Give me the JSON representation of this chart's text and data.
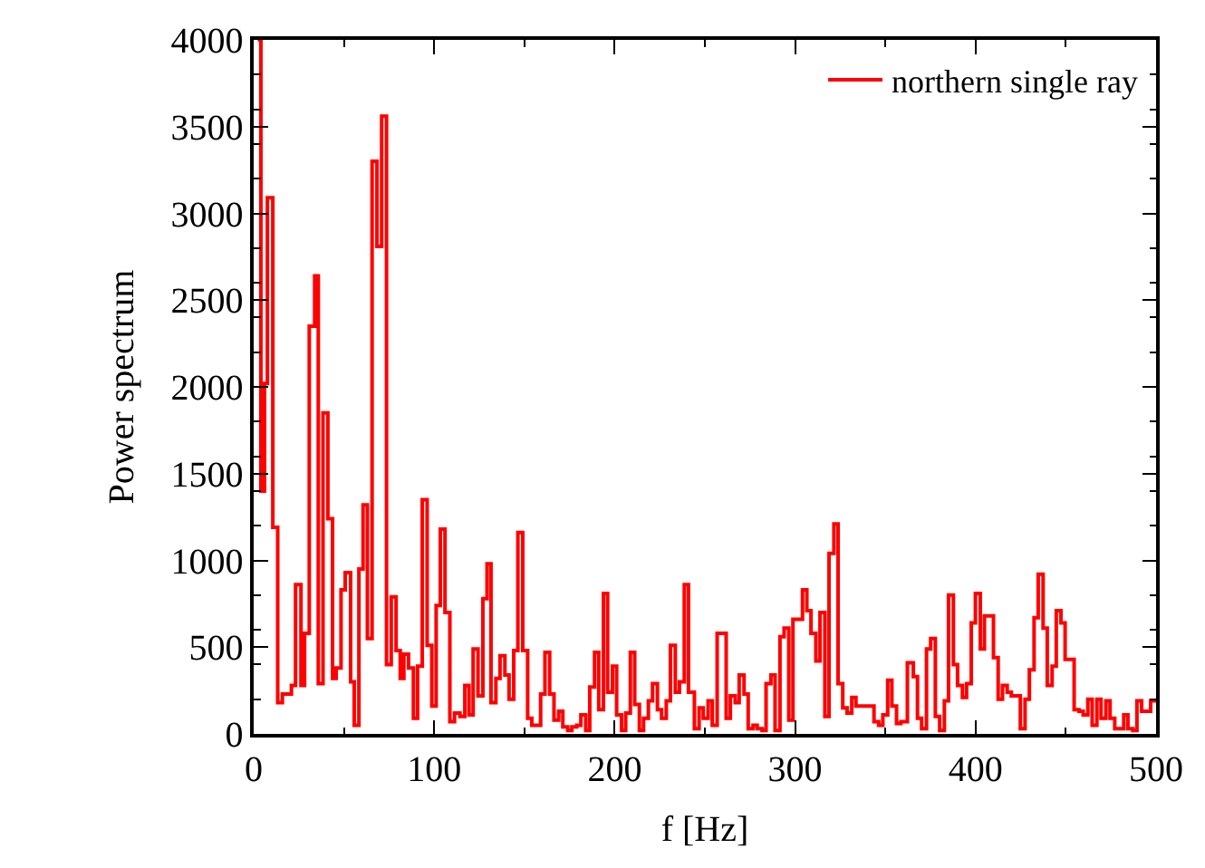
{
  "chart_data": {
    "type": "step",
    "xlabel": "f [Hz]",
    "ylabel": "Power spectrum",
    "xlim": [
      0,
      500
    ],
    "ylim": [
      0,
      4000
    ],
    "xticks": [
      0,
      100,
      200,
      300,
      400,
      500
    ],
    "yticks": [
      0,
      500,
      1000,
      1500,
      2000,
      2500,
      3000,
      3500,
      4000
    ],
    "legend": "top right",
    "marker": "none",
    "line_style": "solid",
    "series": [
      {
        "name": "northern single ray",
        "color": "#ff0000",
        "x": [
          2.3,
          4.0,
          6.0,
          7.6,
          10.6,
          13.3,
          15.9,
          20.9,
          23.2,
          26.2,
          28.2,
          30.8,
          33.8,
          35.8,
          38.4,
          41.1,
          43.7,
          45.7,
          48.4,
          50.7,
          53.7,
          55.7,
          58.3,
          60.6,
          63.0,
          65.6,
          68.3,
          70.9,
          73.6,
          76.2,
          78.9,
          81.2,
          83.2,
          85.8,
          88.5,
          90.8,
          93.4,
          96.1,
          98.7,
          101.1,
          103.4,
          106.0,
          108.7,
          111.3,
          114.3,
          117.0,
          119.3,
          121.6,
          124.3,
          127.0,
          129.3,
          131.5,
          134.2,
          136.5,
          139.2,
          141.5,
          144.1,
          146.4,
          149.1,
          151.8,
          154.1,
          159.0,
          161.4,
          164.0,
          166.4,
          169.0,
          171.3,
          174.0,
          176.3,
          179.0,
          181.3,
          184.0,
          186.2,
          188.9,
          191.2,
          193.8,
          196.1,
          198.8,
          201.1,
          203.8,
          206.1,
          208.7,
          211.1,
          213.7,
          216.0,
          218.7,
          221.0,
          223.7,
          226.0,
          228.6,
          230.9,
          233.6,
          235.9,
          238.6,
          240.9,
          244.2,
          246.8,
          249.1,
          251.8,
          254.1,
          256.8,
          261.8,
          264.1,
          266.8,
          269.0,
          271.7,
          274.0,
          276.7,
          279.0,
          281.7,
          283.9,
          286.6,
          288.9,
          291.6,
          293.9,
          296.5,
          298.8,
          304.1,
          306.5,
          308.8,
          311.5,
          313.8,
          316.5,
          318.8,
          321.5,
          323.8,
          326.4,
          328.8,
          331.4,
          333.7,
          343.7,
          346.3,
          348.6,
          351.3,
          353.6,
          356.2,
          358.6,
          362.2,
          365.5,
          367.8,
          370.1,
          372.8,
          375.1,
          377.7,
          380.1,
          382.7,
          385.0,
          387.7,
          390.0,
          392.7,
          395.0,
          397.6,
          399.9,
          402.6,
          404.9,
          409.9,
          412.5,
          414.9,
          417.5,
          419.8,
          424.8,
          427.4,
          429.8,
          432.4,
          434.7,
          437.4,
          439.7,
          442.4,
          444.7,
          447.3,
          449.6,
          454.6,
          457.3,
          459.6,
          462.2,
          464.6,
          467.2,
          469.5,
          472.2,
          474.5,
          477.1,
          482.1,
          484.4,
          487.1,
          489.4,
          492.0,
          494.4,
          497.0
        ],
        "values": [
          4000,
          1400,
          2020,
          3090,
          1190,
          180,
          230,
          280,
          860,
          280,
          580,
          2350,
          2640,
          290,
          1850,
          1240,
          320,
          380,
          830,
          930,
          300,
          50,
          950,
          1320,
          550,
          3300,
          2810,
          3560,
          400,
          790,
          480,
          320,
          460,
          380,
          90,
          390,
          1350,
          510,
          160,
          740,
          1180,
          700,
          70,
          120,
          100,
          280,
          110,
          490,
          220,
          780,
          980,
          180,
          320,
          450,
          340,
          200,
          480,
          1160,
          480,
          90,
          50,
          230,
          470,
          230,
          80,
          130,
          40,
          20,
          40,
          50,
          110,
          20,
          270,
          470,
          140,
          810,
          240,
          390,
          110,
          20,
          120,
          470,
          170,
          20,
          90,
          190,
          290,
          140,
          90,
          190,
          510,
          240,
          300,
          860,
          240,
          30,
          150,
          90,
          190,
          50,
          580,
          90,
          220,
          180,
          340,
          230,
          30,
          50,
          30,
          20,
          290,
          340,
          20,
          560,
          610,
          80,
          660,
          830,
          710,
          580,
          420,
          700,
          100,
          1040,
          1210,
          290,
          150,
          120,
          210,
          160,
          70,
          50,
          110,
          310,
          160,
          60,
          70,
          410,
          330,
          90,
          30,
          490,
          550,
          100,
          20,
          190,
          800,
          400,
          280,
          210,
          290,
          640,
          810,
          490,
          680,
          440,
          200,
          280,
          240,
          220,
          30,
          200,
          370,
          670,
          920,
          610,
          280,
          390,
          710,
          640,
          430,
          140,
          130,
          110,
          200,
          50,
          200,
          90,
          190,
          90,
          30,
          110,
          30,
          20,
          190,
          130,
          130,
          190
        ]
      }
    ]
  }
}
